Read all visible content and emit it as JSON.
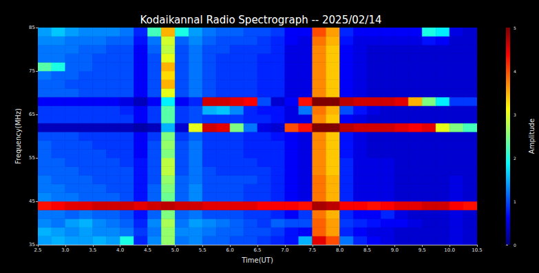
{
  "chart_data": {
    "type": "heatmap",
    "title": "Kodaikannal Radio Spectrograph -- 2025/02/14",
    "x_label": "Time(UT)",
    "y_label": "Frequency(MHz)",
    "xlim": [
      2.5,
      10.5
    ],
    "ylim": [
      35,
      85
    ],
    "xticks": [
      2.5,
      {
        "value": 3,
        "label": "3.0"
      },
      3.5,
      {
        "value": 4,
        "label": "4.0"
      },
      4.5,
      {
        "value": 5,
        "label": "5.0"
      },
      5.5,
      {
        "value": 6,
        "label": "6.0"
      },
      6.5,
      {
        "value": 7,
        "label": "7.0"
      },
      7.5,
      {
        "value": 8,
        "label": "8.0"
      },
      8.5,
      {
        "value": 9,
        "label": "9.0"
      },
      9.5,
      {
        "value": 10,
        "label": "10.0"
      },
      10.5
    ],
    "yticks": [
      35,
      45,
      55,
      65,
      75,
      85
    ],
    "x_bins": [
      2.5,
      2.75,
      3.0,
      3.25,
      3.5,
      3.75,
      4.0,
      4.25,
      4.5,
      4.75,
      5.0,
      5.25,
      5.5,
      5.75,
      6.0,
      6.25,
      6.5,
      6.75,
      7.0,
      7.25,
      7.5,
      7.75,
      8.0,
      8.25,
      8.5,
      8.75,
      9.0,
      9.25,
      9.5,
      9.75,
      10.0,
      10.25,
      10.5
    ],
    "y_bins": [
      35,
      37,
      39,
      41,
      43,
      45,
      47,
      49,
      51,
      53,
      55,
      57,
      59,
      61,
      63,
      65,
      67,
      69,
      71,
      73,
      75,
      77,
      79,
      81,
      83,
      85
    ],
    "cells": [
      [
        1.4,
        1.5,
        1.4,
        1.4,
        1.5,
        1.4,
        2.0,
        0.8,
        1.3,
        2.6,
        1.2,
        1.3,
        1.1,
        1.1,
        1.0,
        1.0,
        0.9,
        0.8,
        0.7,
        1.5,
        4.5,
        4.0,
        1.2,
        0.8,
        0.6,
        0.5,
        0.4,
        0.4,
        0.4,
        0.4,
        0.5,
        0.4
      ],
      [
        1.5,
        1.4,
        1.3,
        1.4,
        1.3,
        1.3,
        1.2,
        0.9,
        1.2,
        2.6,
        1.3,
        1.3,
        1.2,
        1.1,
        1.1,
        1.0,
        1.0,
        0.9,
        0.7,
        0.6,
        3.9,
        3.6,
        0.8,
        0.6,
        0.5,
        0.5,
        0.4,
        0.4,
        0.4,
        0.4,
        0.5,
        0.4
      ],
      [
        1.3,
        1.2,
        1.4,
        1.5,
        1.3,
        1.2,
        1.1,
        0.8,
        1.3,
        2.7,
        1.2,
        1.4,
        1.3,
        1.2,
        1.1,
        1.0,
        0.9,
        1.1,
        1.0,
        1.0,
        3.9,
        3.6,
        0.9,
        0.8,
        0.7,
        0.6,
        0.6,
        0.5,
        0.4,
        0.4,
        0.5,
        0.4
      ],
      [
        1.2,
        1.2,
        1.1,
        1.2,
        1.1,
        1.1,
        1.0,
        0.7,
        1.1,
        2.5,
        1.1,
        1.2,
        1.0,
        1.0,
        1.0,
        0.9,
        0.9,
        0.8,
        0.6,
        0.9,
        3.8,
        3.5,
        0.8,
        0.6,
        0.6,
        0.8,
        0.5,
        0.4,
        0.4,
        0.4,
        0.5,
        0.4
      ],
      [
        4.3,
        4.4,
        4.5,
        4.5,
        4.6,
        4.6,
        4.6,
        4.5,
        4.6,
        4.7,
        4.6,
        4.6,
        4.5,
        4.5,
        4.5,
        4.5,
        4.4,
        4.4,
        4.4,
        4.3,
        4.8,
        4.7,
        4.4,
        4.4,
        4.3,
        4.4,
        4.5,
        4.5,
        4.6,
        4.6,
        4.4,
        4.3
      ],
      [
        1.3,
        1.2,
        1.2,
        1.1,
        1.1,
        1.1,
        1.0,
        0.7,
        1.1,
        2.4,
        1.1,
        1.3,
        1.0,
        1.0,
        1.0,
        0.9,
        0.9,
        0.8,
        0.6,
        0.5,
        3.8,
        3.5,
        0.8,
        0.5,
        0.5,
        0.5,
        0.4,
        0.4,
        0.4,
        0.4,
        0.5,
        0.4
      ],
      [
        1.2,
        1.2,
        1.1,
        1.1,
        1.1,
        1.0,
        1.0,
        0.7,
        1.1,
        2.5,
        1.1,
        1.3,
        1.0,
        1.0,
        1.0,
        0.9,
        0.9,
        0.8,
        0.6,
        0.5,
        3.8,
        3.5,
        0.8,
        0.5,
        0.5,
        0.5,
        0.4,
        0.4,
        0.4,
        0.4,
        0.5,
        0.4
      ],
      [
        1.2,
        1.1,
        1.1,
        1.1,
        1.0,
        1.0,
        1.0,
        0.7,
        1.0,
        2.6,
        1.1,
        1.2,
        1.0,
        1.0,
        1.0,
        1.0,
        0.9,
        0.8,
        0.6,
        0.5,
        3.8,
        3.5,
        0.8,
        0.5,
        0.5,
        0.5,
        0.4,
        0.4,
        0.4,
        0.4,
        0.5,
        0.4
      ],
      [
        1.1,
        1.1,
        1.1,
        1.0,
        1.0,
        1.0,
        1.0,
        0.7,
        1.0,
        2.8,
        1.0,
        1.2,
        1.0,
        0.9,
        0.9,
        0.9,
        0.9,
        0.8,
        0.6,
        0.5,
        3.7,
        3.4,
        0.8,
        0.5,
        0.5,
        0.5,
        0.4,
        0.4,
        0.4,
        0.4,
        0.4,
        0.4
      ],
      [
        1.1,
        1.1,
        1.0,
        1.0,
        1.0,
        1.0,
        0.9,
        0.7,
        1.0,
        2.8,
        1.0,
        1.2,
        0.9,
        0.9,
        0.9,
        0.9,
        0.8,
        0.8,
        0.6,
        0.5,
        3.7,
        3.4,
        0.8,
        0.5,
        0.5,
        0.5,
        0.4,
        0.4,
        0.4,
        0.4,
        0.4,
        0.4
      ],
      [
        1.1,
        1.0,
        1.0,
        1.0,
        1.0,
        0.9,
        0.9,
        0.6,
        1.0,
        2.5,
        1.0,
        1.2,
        0.9,
        0.9,
        0.9,
        0.8,
        0.8,
        0.8,
        0.6,
        0.5,
        3.7,
        3.4,
        0.7,
        0.5,
        0.4,
        0.4,
        0.4,
        0.4,
        0.4,
        0.4,
        0.4,
        0.4
      ],
      [
        1.1,
        1.0,
        1.0,
        1.0,
        0.9,
        0.9,
        0.9,
        0.6,
        1.0,
        2.6,
        1.0,
        1.2,
        0.9,
        0.9,
        0.9,
        0.8,
        0.8,
        0.8,
        0.6,
        0.5,
        3.7,
        3.4,
        0.7,
        0.5,
        0.4,
        0.4,
        0.4,
        0.4,
        0.4,
        0.4,
        0.4,
        0.4
      ],
      [
        1.0,
        1.0,
        1.0,
        0.9,
        0.9,
        0.9,
        0.9,
        0.6,
        0.9,
        2.5,
        0.9,
        1.1,
        0.9,
        0.9,
        0.9,
        0.8,
        0.8,
        0.7,
        0.6,
        0.5,
        3.7,
        3.4,
        0.7,
        0.5,
        0.4,
        0.4,
        0.4,
        0.4,
        0.4,
        0.4,
        0.4,
        0.4
      ],
      [
        0.3,
        0.3,
        0.3,
        0.3,
        0.3,
        0.3,
        0.3,
        0.2,
        0.3,
        1.5,
        0.4,
        3.0,
        4.6,
        4.5,
        2.5,
        1.2,
        0.5,
        0.4,
        4.0,
        4.3,
        5.0,
        5.0,
        4.7,
        4.6,
        4.6,
        4.6,
        4.5,
        4.4,
        4.5,
        3.0,
        2.5,
        2.2
      ],
      [
        0.9,
        0.9,
        0.9,
        0.9,
        0.9,
        0.9,
        0.9,
        0.6,
        0.9,
        2.3,
        0.9,
        1.0,
        0.9,
        0.9,
        0.9,
        0.8,
        0.8,
        0.7,
        0.5,
        0.5,
        3.7,
        3.4,
        0.6,
        0.5,
        0.4,
        0.4,
        0.4,
        0.4,
        0.4,
        0.4,
        0.4,
        0.4
      ],
      [
        0.9,
        0.9,
        0.9,
        0.9,
        0.9,
        0.9,
        0.8,
        0.6,
        0.9,
        2.3,
        0.9,
        1.0,
        1.5,
        1.6,
        1.3,
        0.8,
        0.7,
        0.7,
        0.5,
        1.2,
        3.8,
        3.5,
        1.0,
        0.7,
        0.5,
        0.4,
        0.4,
        0.4,
        0.4,
        0.4,
        0.4,
        0.4
      ],
      [
        0.6,
        0.6,
        0.6,
        0.6,
        0.6,
        0.6,
        0.5,
        0.3,
        0.6,
        1.8,
        0.6,
        0.8,
        4.6,
        4.6,
        4.5,
        4.4,
        1.0,
        0.4,
        0.6,
        4.3,
        5.0,
        5.0,
        4.7,
        4.6,
        4.6,
        4.6,
        4.5,
        3.5,
        2.5,
        1.8,
        0.9,
        0.9
      ],
      [
        1.1,
        1.1,
        1.1,
        1.0,
        1.0,
        1.0,
        1.0,
        0.6,
        1.0,
        3.0,
        1.0,
        1.2,
        1.0,
        0.9,
        0.9,
        0.9,
        0.8,
        0.8,
        0.5,
        0.5,
        3.7,
        3.4,
        0.6,
        0.5,
        0.4,
        0.4,
        0.4,
        0.4,
        0.4,
        0.4,
        0.4,
        0.4
      ],
      [
        1.1,
        1.1,
        1.0,
        1.0,
        1.0,
        1.0,
        1.0,
        0.6,
        1.0,
        3.5,
        1.0,
        1.2,
        1.0,
        0.9,
        0.9,
        0.9,
        0.8,
        0.8,
        0.5,
        0.5,
        3.7,
        3.4,
        0.6,
        0.5,
        0.4,
        0.4,
        0.4,
        0.4,
        0.4,
        0.4,
        0.4,
        0.4
      ],
      [
        1.2,
        1.1,
        1.1,
        1.0,
        1.0,
        1.0,
        1.0,
        0.6,
        1.0,
        3.3,
        1.0,
        1.2,
        1.0,
        0.9,
        0.9,
        0.9,
        0.8,
        0.8,
        0.5,
        0.5,
        3.7,
        3.4,
        0.6,
        0.5,
        0.4,
        0.4,
        0.4,
        0.4,
        0.4,
        0.4,
        0.4,
        0.4
      ],
      [
        2.3,
        2.0,
        1.1,
        1.1,
        1.0,
        1.0,
        1.0,
        0.6,
        1.0,
        3.5,
        1.0,
        1.2,
        1.0,
        0.9,
        0.9,
        0.9,
        0.8,
        0.8,
        0.5,
        0.5,
        3.7,
        3.4,
        0.6,
        0.5,
        0.4,
        0.4,
        0.4,
        0.4,
        0.4,
        0.4,
        0.4,
        0.4
      ],
      [
        1.2,
        1.2,
        1.1,
        1.1,
        1.0,
        1.0,
        1.0,
        0.6,
        1.0,
        3.0,
        1.0,
        1.2,
        1.0,
        0.9,
        0.9,
        0.9,
        0.8,
        0.8,
        0.5,
        0.5,
        3.7,
        3.4,
        0.6,
        0.5,
        0.4,
        0.4,
        0.4,
        0.4,
        0.4,
        0.4,
        0.4,
        0.4
      ],
      [
        1.2,
        1.2,
        1.2,
        1.1,
        1.1,
        1.0,
        1.0,
        0.6,
        1.1,
        2.8,
        1.0,
        1.2,
        1.0,
        1.0,
        0.9,
        0.9,
        0.9,
        0.8,
        0.5,
        0.5,
        3.7,
        3.4,
        0.6,
        0.5,
        0.4,
        0.4,
        0.4,
        0.4,
        0.4,
        0.4,
        0.4,
        0.4
      ],
      [
        1.3,
        1.3,
        1.2,
        1.2,
        1.2,
        1.1,
        1.1,
        0.7,
        1.2,
        2.9,
        1.1,
        1.3,
        1.1,
        1.0,
        1.0,
        1.0,
        0.9,
        0.8,
        0.6,
        0.5,
        3.8,
        3.5,
        0.7,
        0.5,
        0.5,
        0.5,
        0.5,
        0.5,
        0.7,
        0.6,
        0.4,
        0.4
      ],
      [
        1.4,
        1.6,
        1.4,
        1.3,
        1.3,
        1.3,
        1.2,
        0.8,
        2.2,
        3.5,
        2.0,
        1.4,
        1.2,
        1.1,
        1.1,
        1.0,
        1.0,
        0.9,
        0.6,
        0.6,
        4.0,
        3.6,
        0.8,
        0.6,
        0.6,
        0.6,
        0.6,
        0.6,
        2.0,
        1.8,
        0.5,
        0.4
      ]
    ],
    "colorbar_label": "Amplitude",
    "colorbar_range": [
      0,
      5
    ],
    "colorbar_ticks": [
      0,
      1,
      2,
      3,
      4,
      5
    ]
  }
}
